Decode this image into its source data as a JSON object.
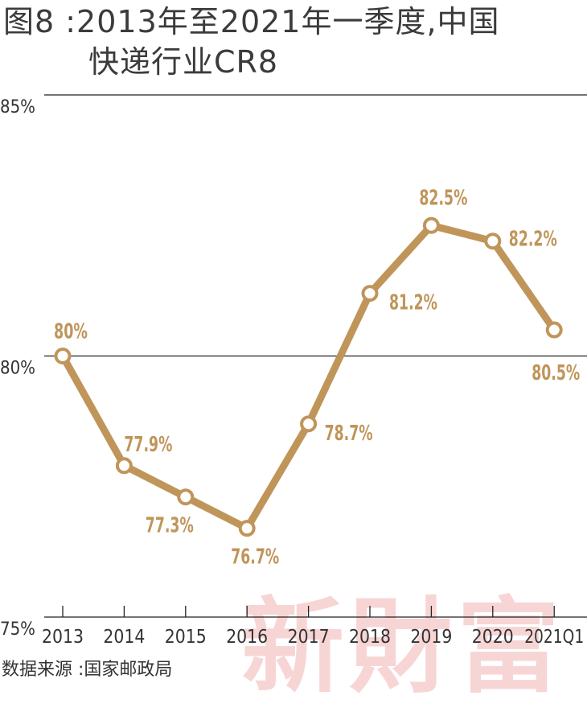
{
  "title": {
    "line1": "图8 :2013年至2021年一季度,中国",
    "line2": "快递行业CR8"
  },
  "source": "数据来源 :国家邮政局",
  "watermark": "新財富",
  "colors": {
    "line": "#c0955a",
    "label": "#c0955a",
    "gridline": "#222222",
    "marker_fill": "#ffffff"
  },
  "chart_data": {
    "type": "line",
    "categories": [
      "2013",
      "2014",
      "2015",
      "2016",
      "2017",
      "2018",
      "2019",
      "2020",
      "2021Q1"
    ],
    "values": [
      80.0,
      77.9,
      77.3,
      76.7,
      78.7,
      81.2,
      82.5,
      82.2,
      80.5
    ],
    "data_labels": [
      "80%",
      "77.9%",
      "77.3%",
      "76.7%",
      "78.7%",
      "81.2%",
      "82.5%",
      "82.2%",
      "80.5%"
    ],
    "ylim": [
      75,
      85
    ],
    "yticks": [
      75,
      80,
      85
    ],
    "ytick_labels": [
      "75%",
      "80%",
      "85%"
    ],
    "grid": true
  }
}
